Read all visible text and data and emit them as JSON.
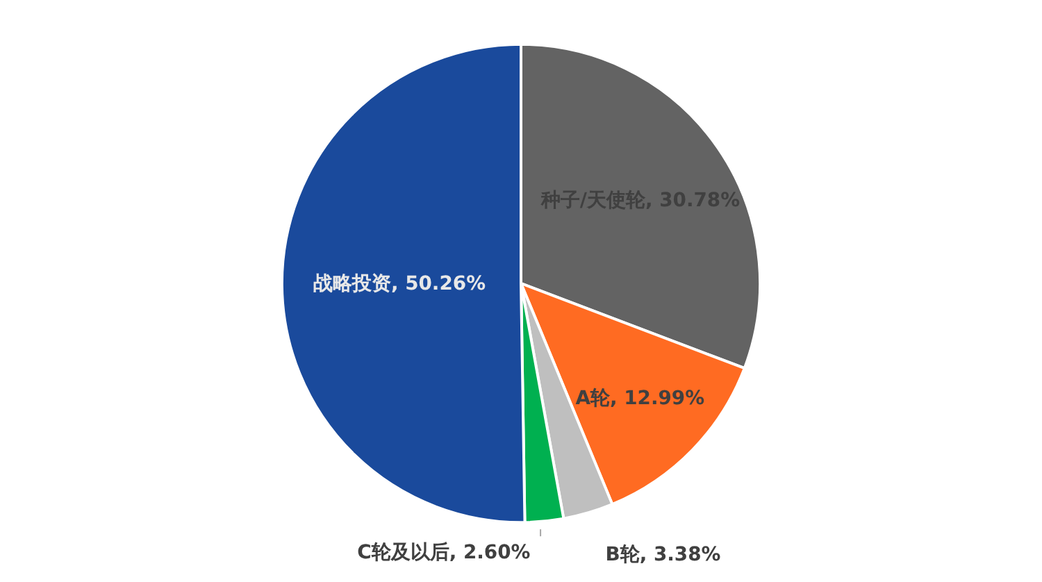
{
  "chart_data": {
    "type": "pie",
    "categories": [
      "种子/天使轮",
      "A轮",
      "B轮",
      "C轮及以后",
      "战略投资"
    ],
    "values": [
      30.78,
      12.99,
      3.38,
      2.6,
      50.26
    ],
    "value_labels": [
      "30.78%",
      "12.99%",
      "3.38%",
      "2.60%",
      "50.26%"
    ],
    "colors": [
      "#636363",
      "#ff6b22",
      "#bfbfbf",
      "#00b050",
      "#1a4a9c"
    ]
  }
}
